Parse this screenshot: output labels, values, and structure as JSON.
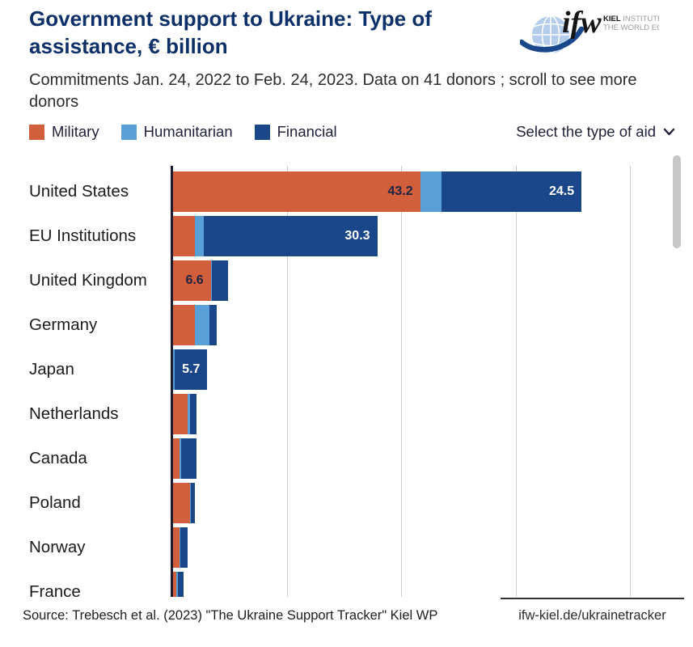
{
  "header": {
    "title": "Government support to Ukraine: Type of assistance, € billion",
    "subtitle": "Commitments Jan. 24, 2022 to Feb. 24, 2023. Data on 41 donors ; scroll to see more donors",
    "logo": {
      "short_name": "ifw",
      "line1_bold": "KIEL",
      "line1_rest": " INSTITUTE FOR",
      "line2": "THE WORLD ECONOMY"
    }
  },
  "controls": {
    "legend": [
      {
        "label": "Military",
        "color": "#d15f3b"
      },
      {
        "label": "Humanitarian",
        "color": "#58a0d7"
      },
      {
        "label": "Financial",
        "color": "#1a4789"
      }
    ],
    "dropdown_label": "Select the type of aid",
    "dropdown_icon": "chevron-down"
  },
  "chart_data": {
    "type": "bar",
    "orientation": "horizontal",
    "stacked": true,
    "unit": "€ billion",
    "title": "Government support to Ukraine: Type of assistance, € billion",
    "series_names": [
      "Military",
      "Humanitarian",
      "Financial"
    ],
    "colors": {
      "military": "#d15f3b",
      "humanitarian": "#58a0d7",
      "financial": "#1a4789"
    },
    "axis": {
      "min": 0,
      "max": 90,
      "gridline_step": 20,
      "gridlines": [
        20,
        40,
        60,
        80
      ],
      "grid": true
    },
    "legend_position": "top-left",
    "note": "List is scrollable; 10 of 41 donors visible, last row clipped",
    "donors": [
      {
        "name": "United States",
        "military": 43.2,
        "humanitarian": 3.7,
        "financial": 24.5,
        "labels": {
          "military": "43.2",
          "financial": "24.5"
        }
      },
      {
        "name": "EU Institutions",
        "military": 3.8,
        "humanitarian": 1.6,
        "financial": 30.3,
        "labels": {
          "financial": "30.3"
        }
      },
      {
        "name": "United Kingdom",
        "military": 6.6,
        "humanitarian": 0.25,
        "financial": 2.7,
        "labels": {
          "military": "6.6"
        }
      },
      {
        "name": "Germany",
        "military": 3.8,
        "humanitarian": 2.5,
        "financial": 1.3,
        "labels": {}
      },
      {
        "name": "Japan",
        "military": 0,
        "humanitarian": 0.3,
        "financial": 5.7,
        "labels": {
          "financial": "5.7"
        }
      },
      {
        "name": "Netherlands",
        "military": 2.5,
        "humanitarian": 0.4,
        "financial": 1.2,
        "labels": {}
      },
      {
        "name": "Canada",
        "military": 1.2,
        "humanitarian": 0.2,
        "financial": 2.7,
        "labels": {}
      },
      {
        "name": "Poland",
        "military": 3.0,
        "humanitarian": 0.15,
        "financial": 0.6,
        "labels": {}
      },
      {
        "name": "Norway",
        "military": 1.1,
        "humanitarian": 0.15,
        "financial": 1.3,
        "labels": {}
      },
      {
        "name": "France",
        "military": 0.6,
        "humanitarian": 0.25,
        "financial": 1.0,
        "labels": {}
      }
    ]
  },
  "footer": {
    "source": "Source: Trebesch et al. (2023) \"The Ukraine Support Tracker\" Kiel WP",
    "link": "ifw-kiel.de/ukrainetracker"
  }
}
